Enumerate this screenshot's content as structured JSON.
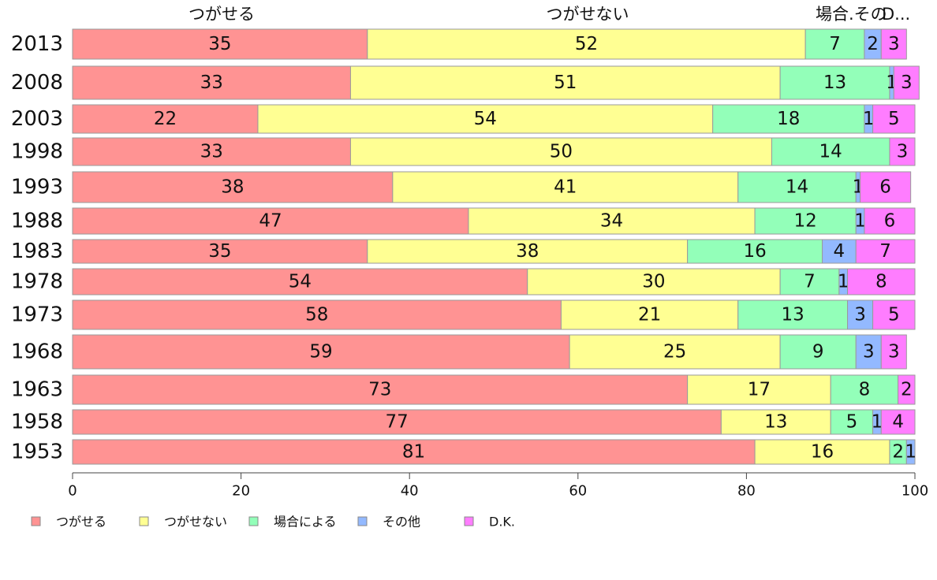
{
  "chart_data": {
    "type": "bar",
    "orientation": "horizontal",
    "stacked": true,
    "categories": [
      "2013",
      "2008",
      "2003",
      "1998",
      "1993",
      "1988",
      "1983",
      "1978",
      "1973",
      "1968",
      "1963",
      "1958",
      "1953"
    ],
    "series": [
      {
        "name": "つがせる",
        "color": "#ff9393",
        "values": [
          35,
          33,
          22,
          33,
          38,
          47,
          35,
          54,
          58,
          59,
          73,
          77,
          81
        ],
        "labels": [
          "35",
          "33",
          "22",
          "33",
          "38",
          "47",
          "35",
          "54",
          "58",
          "59",
          "73",
          "77",
          "81"
        ]
      },
      {
        "name": "つがせない",
        "color": "#ffff93",
        "values": [
          52,
          51,
          54,
          50,
          41,
          34,
          38,
          30,
          21,
          25,
          17,
          13,
          16
        ],
        "labels": [
          "52",
          "51",
          "54",
          "50",
          "41",
          "34",
          "38",
          "30",
          "21",
          "25",
          "17",
          "13",
          "16"
        ]
      },
      {
        "name": "場合による",
        "color": "#93ffb9",
        "values": [
          7,
          13,
          18,
          14,
          14,
          12,
          16,
          7,
          13,
          9,
          8,
          5,
          2
        ],
        "labels": [
          "7",
          "13",
          "18",
          "14",
          "14",
          "12",
          "16",
          "7",
          "13",
          "9",
          "8",
          "5",
          "2"
        ]
      },
      {
        "name": "その他",
        "color": "#93b9ff",
        "values": [
          2,
          0.5,
          1,
          0,
          0.5,
          1,
          4,
          1,
          3,
          3,
          0,
          1,
          1
        ],
        "labels": [
          "2",
          "1",
          "1",
          "",
          "1",
          "1",
          "4",
          "1",
          "3",
          "3",
          "",
          "1",
          "1"
        ]
      },
      {
        "name": "D.K.",
        "color": "#ff7dff",
        "values": [
          3,
          3,
          5,
          3,
          6,
          6,
          7,
          8,
          5,
          3,
          2,
          4,
          0
        ],
        "labels": [
          "3",
          "3",
          "5",
          "3",
          "6",
          "6",
          "7",
          "8",
          "5",
          "3",
          "2",
          "4",
          ""
        ]
      }
    ],
    "top_labels": [
      "つがせる",
      "つがせない",
      "場合.その",
      "D..."
    ],
    "x_ticks": [
      "0",
      "20",
      "40",
      "60",
      "80",
      "100"
    ],
    "xlim": [
      0,
      100
    ],
    "legend_position": "bottom-left",
    "grid": false
  }
}
